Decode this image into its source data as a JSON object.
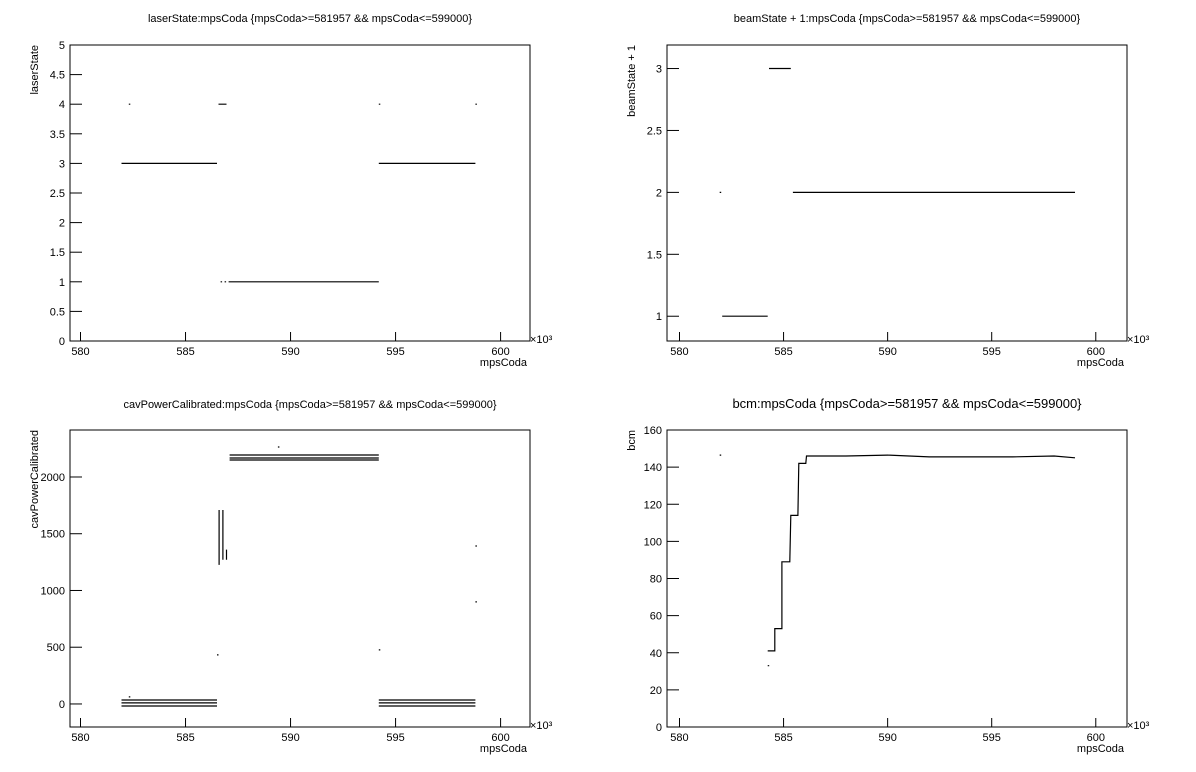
{
  "chart_data": [
    {
      "type": "line",
      "title": "laserState:mpsCoda {mpsCoda>=581957 && mpsCoda<=599000}",
      "xlabel": "mpsCoda",
      "ylabel": "laserState",
      "x_exponent_label": "×10³",
      "xlim": [
        579.5,
        601.4
      ],
      "xticks": [
        580,
        585,
        590,
        595,
        600
      ],
      "ylim": [
        0,
        5
      ],
      "yticks": [
        0,
        0.5,
        1,
        1.5,
        2,
        2.5,
        3,
        3.5,
        4,
        4.5,
        5
      ],
      "color": "#000000",
      "x": [
        581.95,
        586.5,
        null,
        582.3,
        null,
        586.57,
        586.95,
        null,
        586.67,
        null,
        586.86,
        null,
        587.05,
        594.2,
        null,
        594.2,
        null,
        594.2,
        598.8,
        null,
        598.8
      ],
      "values": [
        3,
        3,
        null,
        4,
        null,
        4,
        4,
        null,
        1,
        null,
        1,
        null,
        1,
        1,
        null,
        4,
        null,
        3,
        3,
        null,
        4
      ]
    },
    {
      "type": "line",
      "title": "beamState + 1:mpsCoda {mpsCoda>=581957 && mpsCoda<=599000}",
      "xlabel": "mpsCoda",
      "ylabel": "beamState + 1",
      "x_exponent_label": "×10³",
      "xlim": [
        579.4,
        601.5
      ],
      "xticks": [
        580,
        585,
        590,
        595,
        600
      ],
      "ylim": [
        0.8,
        3.19
      ],
      "yticks": [
        1,
        1.5,
        2,
        2.5,
        3
      ],
      "color": "#000000",
      "x": [
        581.93,
        null,
        582.05,
        584.24,
        null,
        584.3,
        585.35,
        null,
        585.45,
        599.0
      ],
      "values": [
        2,
        null,
        1,
        1,
        null,
        3,
        3,
        null,
        2,
        2
      ]
    },
    {
      "type": "line",
      "title": "cavPowerCalibrated:mpsCoda {mpsCoda>=581957 && mpsCoda<=599000}",
      "xlabel": "mpsCoda",
      "ylabel": "cavPowerCalibrated",
      "x_exponent_label": "×10³",
      "xlim": [
        579.5,
        601.4
      ],
      "xticks": [
        580,
        585,
        590,
        595,
        600
      ],
      "ylim": [
        -203,
        2414
      ],
      "yticks": [
        0,
        500,
        1000,
        1500,
        2000
      ],
      "color": "#000000",
      "x": [
        581.95,
        586.5,
        null,
        581.95,
        586.5,
        null,
        581.95,
        586.5,
        null,
        582.3,
        null,
        586.5,
        null,
        586.6,
        586.6,
        null,
        586.78,
        586.78,
        null,
        586.95,
        586.95,
        null,
        587.1,
        594.2,
        null,
        587.1,
        594.2,
        null,
        587.1,
        594.2,
        null,
        589.4,
        null,
        594.2,
        null,
        594.2,
        598.8,
        null,
        594.2,
        598.8,
        null,
        594.2,
        598.8,
        null,
        598.8,
        null,
        598.8
      ],
      "values": [
        35,
        35,
        null,
        9,
        9,
        null,
        -18,
        -18,
        null,
        62,
        null,
        432,
        null,
        1225,
        1709,
        null,
        1270,
        1709,
        null,
        1270,
        1360,
        null,
        2194,
        2194,
        null,
        2167,
        2167,
        null,
        2150,
        2150,
        null,
        2264,
        null,
        476,
        null,
        35,
        35,
        null,
        9,
        9,
        null,
        -18,
        -18,
        null,
        1392,
        null,
        899
      ]
    },
    {
      "type": "line",
      "title": "bcm:mpsCoda {mpsCoda>=581957 && mpsCoda<=599000}",
      "xlabel": "mpsCoda",
      "ylabel": "bcm",
      "x_exponent_label": "×10³",
      "xlim": [
        579.4,
        601.5
      ],
      "xticks": [
        580,
        585,
        590,
        595,
        600
      ],
      "ylim": [
        0,
        160
      ],
      "yticks": [
        0,
        20,
        40,
        60,
        80,
        100,
        120,
        140,
        160
      ],
      "color": "#000000",
      "x": [
        581.93,
        null,
        584.24,
        null,
        584.24,
        584.58,
        584.58,
        584.92,
        584.92,
        585.3,
        585.35,
        585.69,
        585.73,
        586.07,
        586.1,
        588,
        590,
        592,
        594,
        596,
        598,
        599.0
      ],
      "values": [
        146.5,
        null,
        33,
        null,
        41,
        41,
        53,
        53,
        89,
        89,
        114,
        114,
        142,
        142,
        146,
        146,
        146.5,
        145.5,
        145.5,
        145.5,
        146,
        145
      ]
    }
  ]
}
